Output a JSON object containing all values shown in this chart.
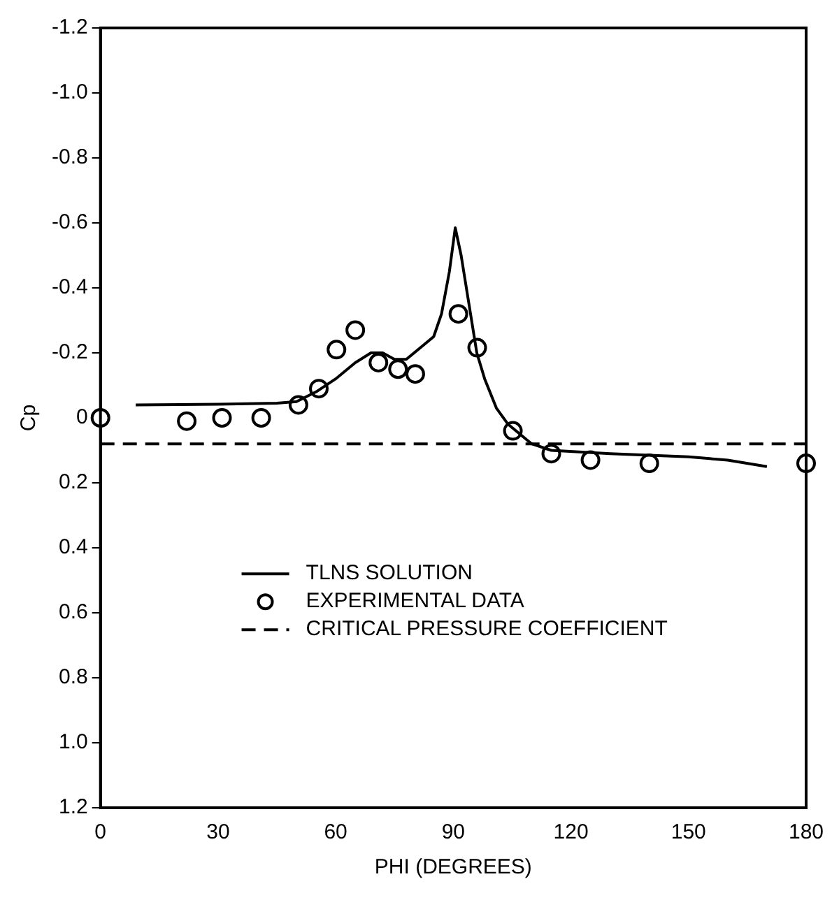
{
  "chart_data": {
    "type": "line",
    "xlabel": "PHI (DEGREES)",
    "ylabel": "Cp",
    "xlim": [
      0,
      180
    ],
    "xticks": [
      0,
      30,
      60,
      90,
      120,
      150,
      180
    ],
    "ylim": [
      1.2,
      -1.2
    ],
    "yticks": [
      {
        "value": -1.2,
        "label": "-1.2"
      },
      {
        "value": -1,
        "label": "-1.0"
      },
      {
        "value": -0.8,
        "label": "-0.8"
      },
      {
        "value": -0.6,
        "label": "-0.6"
      },
      {
        "value": -0.4,
        "label": "-0.4"
      },
      {
        "value": -0.2,
        "label": "-0.2"
      },
      0,
      {
        "value": 0.2,
        "label": "0.2"
      },
      {
        "value": 0.4,
        "label": "0.4"
      },
      {
        "value": 0.6,
        "label": "0.6"
      },
      {
        "value": 0.8,
        "label": "0.8"
      },
      {
        "value": 1,
        "label": "1.0"
      },
      {
        "value": 1.2,
        "label": "1.2"
      }
    ],
    "grid": false,
    "legend": "bottom",
    "series": [
      {
        "name": "TLNS SOLUTION",
        "color": "#000000",
        "line_style": "solid",
        "marker": "none",
        "x": [
          9,
          30,
          45,
          50,
          55,
          60,
          65,
          69,
          72,
          75,
          78,
          82,
          85,
          87,
          89,
          90.5,
          92,
          94,
          96,
          98,
          101,
          104,
          110,
          115,
          130,
          150,
          160,
          170
        ],
        "values": [
          -0.04,
          -0.042,
          -0.045,
          -0.05,
          -0.08,
          -0.12,
          -0.17,
          -0.2,
          -0.2,
          -0.18,
          -0.18,
          -0.22,
          -0.25,
          -0.32,
          -0.45,
          -0.585,
          -0.5,
          -0.35,
          -0.2,
          -0.12,
          -0.03,
          0.02,
          0.08,
          0.1,
          0.11,
          0.12,
          0.13,
          0.15
        ]
      },
      {
        "name": "EXPERIMENTAL DATA",
        "type": "scatter",
        "color": "#000000",
        "marker": "circle",
        "x": [
          0,
          22,
          31,
          41,
          50.5,
          55.7,
          60.2,
          65,
          70.9,
          75.9,
          80.3,
          91.3,
          96.1,
          105.2,
          115,
          125,
          140,
          180
        ],
        "values": [
          0,
          0.01,
          0,
          0,
          -0.04,
          -0.09,
          -0.21,
          -0.27,
          -0.17,
          -0.15,
          -0.135,
          -0.32,
          -0.216,
          0.04,
          0.11,
          0.13,
          0.14,
          0.14
        ]
      },
      {
        "name": "CRITICAL PRESSURE COEFFICIENT",
        "color": "#000000",
        "line_style": "dashed",
        "marker": "none",
        "x": [
          0,
          180
        ],
        "values": [
          0.08,
          0.08
        ]
      }
    ]
  }
}
